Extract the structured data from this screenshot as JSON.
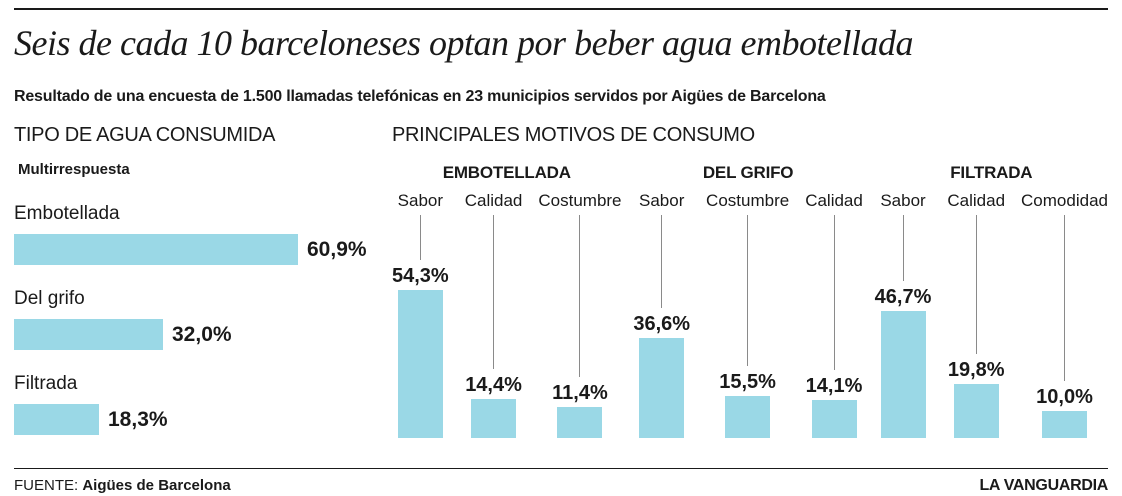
{
  "header": {
    "title": "Seis de cada 10 barceloneses optan por beber agua embotellada",
    "subtitle": "Resultado de una encuesta de 1.500 llamadas telefónicas en 23 municipios servidos por Aigües de Barcelona"
  },
  "colors": {
    "bar": "#9ad8e6",
    "text": "#1a1a1a",
    "leader_line": "#8a8a8a",
    "rule": "#1a1a1a"
  },
  "chart_data": [
    {
      "type": "bar",
      "orientation": "horizontal",
      "title": "TIPO DE AGUA CONSUMIDA",
      "note": "Multirrespuesta",
      "categories": [
        "Embotellada",
        "Del grifo",
        "Filtrada"
      ],
      "values": [
        60.9,
        32.0,
        18.3
      ],
      "value_labels": [
        "60,9%",
        "32,0%",
        "18,3%"
      ],
      "unit": "%",
      "xlim": [
        0,
        61
      ],
      "grid": false,
      "legend": false
    },
    {
      "type": "bar",
      "orientation": "vertical",
      "title": "PRINCIPALES MOTIVOS DE CONSUMO",
      "unit": "%",
      "ylim": [
        0,
        55
      ],
      "grid": false,
      "legend": false,
      "groups": [
        {
          "name": "EMBOTELLADA",
          "categories": [
            "Sabor",
            "Calidad",
            "Costumbre"
          ],
          "values": [
            54.3,
            14.4,
            11.4
          ],
          "value_labels": [
            "54,3%",
            "14,4%",
            "11,4%"
          ]
        },
        {
          "name": "DEL GRIFO",
          "categories": [
            "Sabor",
            "Costumbre",
            "Calidad"
          ],
          "values": [
            36.6,
            15.5,
            14.1
          ],
          "value_labels": [
            "36,6%",
            "15,5%",
            "14,1%"
          ]
        },
        {
          "name": "FILTRADA",
          "categories": [
            "Sabor",
            "Calidad",
            "Comodidad"
          ],
          "values": [
            46.7,
            19.8,
            10.0
          ],
          "value_labels": [
            "46,7%",
            "19,8%",
            "10,0%"
          ]
        }
      ]
    }
  ],
  "footer": {
    "source_label": "FUENTE:",
    "source": "Aigües de Barcelona",
    "brand": "LA VANGUARDIA"
  }
}
